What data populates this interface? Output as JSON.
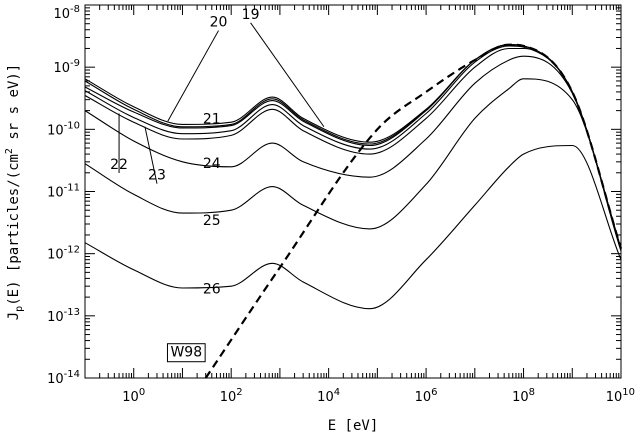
{
  "chart_data": {
    "type": "line",
    "xscale": "log",
    "yscale": "log",
    "xlim": [
      0.1,
      10000000000
    ],
    "ylim": [
      1e-14,
      1e-08
    ],
    "grid": false,
    "xlabel": "E [eV]",
    "ylabel": "J_p(E) [particles/(cm² sr s eV)]",
    "ylabel_parts": {
      "main": "J",
      "sub": "p",
      "mid": "(E) [particles/(cm",
      "sup": "2",
      "end": " sr s eV)]"
    },
    "x_ticks": [
      {
        "value": 1,
        "base": "10",
        "exp": "0"
      },
      {
        "value": 100,
        "base": "10",
        "exp": "2"
      },
      {
        "value": 10000,
        "base": "10",
        "exp": "4"
      },
      {
        "value": 1000000,
        "base": "10",
        "exp": "6"
      },
      {
        "value": 100000000,
        "base": "10",
        "exp": "8"
      },
      {
        "value": 10000000000,
        "base": "10",
        "exp": "10"
      }
    ],
    "y_ticks": [
      {
        "value": 1e-14,
        "base": "10",
        "exp": "-14"
      },
      {
        "value": 1e-13,
        "base": "10",
        "exp": "-13"
      },
      {
        "value": 1e-12,
        "base": "10",
        "exp": "-12"
      },
      {
        "value": 1e-11,
        "base": "10",
        "exp": "-11"
      },
      {
        "value": 1e-10,
        "base": "10",
        "exp": "-10"
      },
      {
        "value": 1e-09,
        "base": "10",
        "exp": "-9"
      },
      {
        "value": 1e-08,
        "base": "10",
        "exp": "-8"
      }
    ],
    "series": [
      {
        "name": "19",
        "style": "solid",
        "x": [
          0.1,
          1,
          10,
          100,
          700,
          3000,
          70000,
          1000000,
          10000000,
          50000000,
          100000000,
          1000000000,
          10000000000
        ],
        "y": [
          4.8e-10,
          1.9e-10,
          1.05e-10,
          1.15e-10,
          2.9e-10,
          1.35e-10,
          5.5e-11,
          2e-10,
          1.3e-09,
          2.3e-09,
          2.2e-09,
          4e-10,
          1.2e-12
        ]
      },
      {
        "name": "20",
        "style": "solid",
        "x": [
          0.1,
          1,
          10,
          100,
          700,
          3000,
          70000,
          1000000,
          10000000,
          50000000,
          100000000,
          1000000000,
          10000000000
        ],
        "y": [
          6.5e-10,
          2.3e-10,
          1.2e-10,
          1.3e-10,
          3.3e-10,
          1.5e-10,
          6.2e-11,
          2.1e-10,
          1.3e-09,
          2.3e-09,
          2.2e-09,
          4e-10,
          1.2e-12
        ]
      },
      {
        "name": "21",
        "style": "solid",
        "x": [
          0.1,
          1,
          10,
          100,
          700,
          3000,
          70000,
          1000000,
          10000000,
          50000000,
          100000000,
          1000000000,
          10000000000
        ],
        "y": [
          6e-10,
          2.1e-10,
          1.1e-10,
          1.2e-10,
          3.1e-10,
          1.42e-10,
          5.8e-11,
          2.05e-10,
          1.3e-09,
          2.3e-09,
          2.2e-09,
          4e-10,
          1.2e-12
        ]
      },
      {
        "name": "22",
        "style": "solid",
        "x": [
          0.1,
          1,
          10,
          100,
          700,
          3000,
          70000,
          1000000,
          10000000,
          50000000,
          100000000,
          1000000000,
          10000000000
        ],
        "y": [
          4.2e-10,
          1.55e-10,
          8.5e-11,
          9.5e-11,
          2.5e-10,
          1.15e-10,
          4.8e-11,
          1.8e-10,
          1.2e-09,
          2.2e-09,
          2.1e-09,
          4e-10,
          1.2e-12
        ]
      },
      {
        "name": "23",
        "style": "solid",
        "x": [
          0.1,
          1,
          10,
          100,
          700,
          3000,
          70000,
          1000000,
          10000000,
          50000000,
          100000000,
          1000000000,
          10000000000
        ],
        "y": [
          3.5e-10,
          1.3e-10,
          7e-11,
          8e-11,
          2.1e-10,
          9.5e-11,
          4e-11,
          1.5e-10,
          1e-09,
          2e-09,
          2e-09,
          4e-10,
          1.2e-12
        ]
      },
      {
        "name": "24",
        "style": "solid",
        "x": [
          0.1,
          1,
          10,
          100,
          700,
          3000,
          70000,
          1000000,
          10000000,
          50000000,
          100000000,
          1000000000,
          10000000000
        ],
        "y": [
          2e-10,
          6.5e-11,
          3e-11,
          2.5e-11,
          6e-11,
          3e-11,
          1.7e-11,
          7e-11,
          5.5e-10,
          1.3e-09,
          1.5e-09,
          3.8e-10,
          1.2e-12
        ]
      },
      {
        "name": "25",
        "style": "solid",
        "x": [
          0.1,
          1,
          10,
          100,
          700,
          3000,
          70000,
          1000000,
          10000000,
          50000000,
          100000000,
          1000000000,
          10000000000
        ],
        "y": [
          2.8e-11,
          9e-12,
          4.5e-12,
          5e-12,
          1.2e-11,
          6e-12,
          2.5e-12,
          1.3e-11,
          1.5e-10,
          4.5e-10,
          6.5e-10,
          3e-10,
          1.1e-12
        ]
      },
      {
        "name": "26",
        "style": "solid",
        "x": [
          0.1,
          1,
          10,
          100,
          700,
          3000,
          70000,
          1000000,
          10000000,
          50000000,
          100000000,
          1000000000,
          10000000000
        ],
        "y": [
          1.5e-12,
          5.5e-13,
          2.8e-13,
          3e-13,
          7e-13,
          3.5e-13,
          1.3e-13,
          8e-13,
          6e-12,
          2.5e-11,
          4e-11,
          5.5e-11,
          8e-13
        ]
      },
      {
        "name": "W98",
        "style": "dashed",
        "x": [
          30,
          1000,
          100000,
          1000000,
          10000000,
          50000000,
          100000000,
          1000000000,
          10000000000
        ],
        "y": [
          1e-14,
          6e-13,
          1e-10,
          4e-10,
          1.3e-09,
          2.3e-09,
          2.2e-09,
          4e-10,
          1.2e-12
        ]
      }
    ],
    "annotations": [
      {
        "text": "19",
        "x": 250,
        "y": 6e-09,
        "leader_to": [
          8000,
          1.1e-10
        ]
      },
      {
        "text": "20",
        "x": 55,
        "y": 4.5e-09,
        "leader_to": [
          5,
          1.35e-10
        ]
      },
      {
        "text": "21",
        "x": 40,
        "y": 1.25e-10,
        "leader_to": null
      },
      {
        "text": "22",
        "x": 0.5,
        "y": 2.3e-11,
        "leader_to": [
          0.5,
          1.8e-10
        ]
      },
      {
        "text": "23",
        "x": 3.0,
        "y": 1.55e-11,
        "leader_to": [
          1.7,
          1.1e-10
        ]
      },
      {
        "text": "24",
        "x": 40,
        "y": 2.4e-11,
        "leader_to": null
      },
      {
        "text": "25",
        "x": 40,
        "y": 2.9e-12,
        "leader_to": null
      },
      {
        "text": "26",
        "x": 40,
        "y": 2.3e-13,
        "leader_to": null
      },
      {
        "text": "W98",
        "x": 12,
        "y": 2.2e-14,
        "leader_to": null,
        "boxed": true
      }
    ]
  }
}
